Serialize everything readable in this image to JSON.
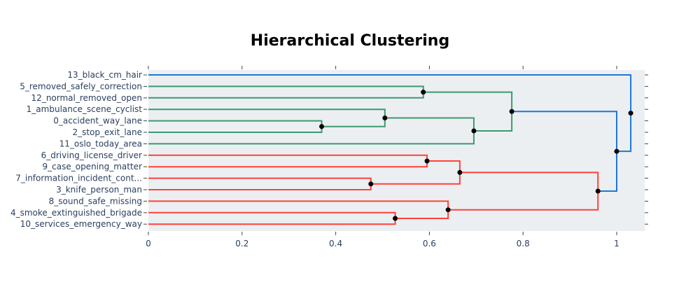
{
  "chart_data": {
    "type": "dendrogram",
    "title": "Hierarchical Clustering",
    "xlabel": "",
    "ylabel": "",
    "xlim": [
      0,
      1.06
    ],
    "x_ticks": [
      0,
      0.2,
      0.4,
      0.6,
      0.8,
      1
    ],
    "x_tick_labels": [
      "0",
      "0.2",
      "0.4",
      "0.6",
      "0.8",
      "1"
    ],
    "grid": false,
    "plot_background": "#ebeff2",
    "colors": {
      "blue": "#1f77d4",
      "green": "#3d9970",
      "red": "#ff4136",
      "node": "#000000",
      "text": "#2a3f5f"
    },
    "leaves": [
      "13_black_cm_hair",
      "5_removed_safely_correction",
      "12_normal_removed_open",
      "1_ambulance_scene_cyclist",
      "0_accident_way_lane",
      "2_stop_exit_lane",
      "11_oslo_today_area",
      "6_driving_license_driver",
      "9_case_opening_matter",
      "7_information_incident_cont...",
      "3_knife_person_man",
      "8_sound_safe_missing",
      "4_smoke_extinguished_brigade",
      "10_services_emergency_way"
    ],
    "merges": [
      {
        "id": "m1",
        "children": [
          "L4",
          "L5"
        ],
        "distance": 0.37,
        "color": "green"
      },
      {
        "id": "m2",
        "children": [
          "L3",
          "m1"
        ],
        "distance": 0.505,
        "color": "green"
      },
      {
        "id": "m3",
        "children": [
          "L1",
          "L2"
        ],
        "distance": 0.587,
        "color": "green"
      },
      {
        "id": "m4",
        "children": [
          "m2",
          "L6"
        ],
        "distance": 0.695,
        "color": "green"
      },
      {
        "id": "m5",
        "children": [
          "m3",
          "m4"
        ],
        "distance": 0.776,
        "color": "green"
      },
      {
        "id": "m6",
        "children": [
          "L9",
          "L10"
        ],
        "distance": 0.475,
        "color": "red"
      },
      {
        "id": "m7",
        "children": [
          "L12",
          "L13"
        ],
        "distance": 0.527,
        "color": "red"
      },
      {
        "id": "m8",
        "children": [
          "L7",
          "L8"
        ],
        "distance": 0.595,
        "color": "red"
      },
      {
        "id": "m9",
        "children": [
          "L11",
          "m7"
        ],
        "distance": 0.64,
        "color": "red"
      },
      {
        "id": "m10",
        "children": [
          "m8",
          "m6"
        ],
        "distance": 0.665,
        "color": "red"
      },
      {
        "id": "m11",
        "children": [
          "m10",
          "m9"
        ],
        "distance": 0.96,
        "color": "red"
      },
      {
        "id": "m12",
        "children": [
          "m5",
          "m11"
        ],
        "distance": 1.0,
        "color": "blue"
      },
      {
        "id": "m13",
        "children": [
          "L0",
          "m12"
        ],
        "distance": 1.03,
        "color": "blue"
      }
    ]
  }
}
